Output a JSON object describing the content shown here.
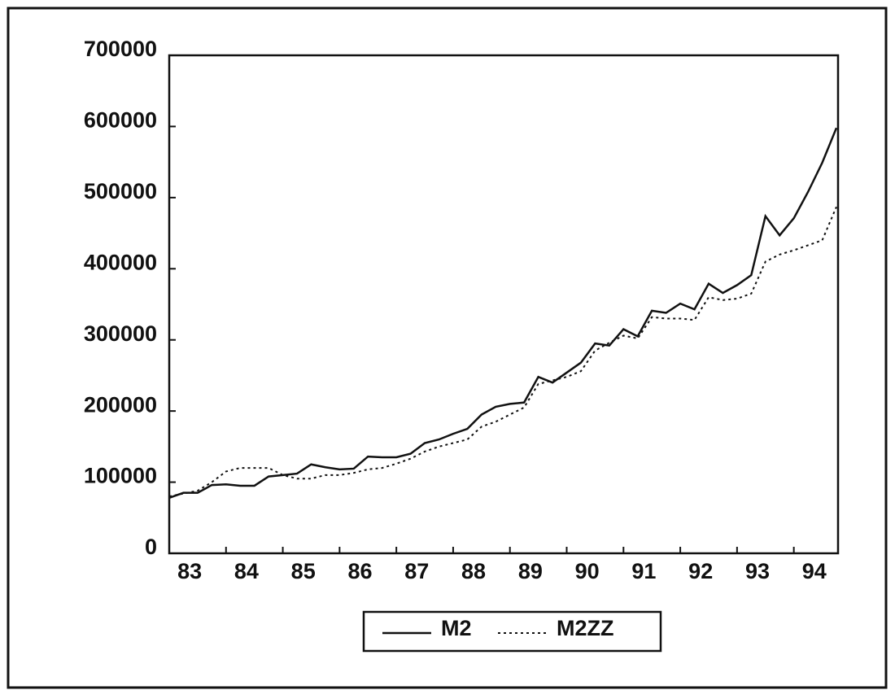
{
  "chart_data": {
    "type": "line",
    "x": [
      83,
      83.25,
      83.5,
      83.75,
      84,
      84.25,
      84.5,
      84.75,
      85,
      85.25,
      85.5,
      85.75,
      86,
      86.25,
      86.5,
      86.75,
      87,
      87.25,
      87.5,
      87.75,
      88,
      88.25,
      88.5,
      88.75,
      89,
      89.25,
      89.5,
      89.75,
      90,
      90.25,
      90.5,
      90.75,
      91,
      91.25,
      91.5,
      91.75,
      92,
      92.25,
      92.5,
      92.75,
      93,
      93.25,
      93.5,
      93.75,
      94,
      94.25,
      94.5,
      94.75
    ],
    "series": [
      {
        "name": "M2",
        "color": "#111111",
        "dash": "solid",
        "values": [
          78000,
          85000,
          85000,
          96000,
          97000,
          95000,
          95000,
          108000,
          110000,
          112000,
          125000,
          121000,
          118000,
          119000,
          136000,
          135000,
          135000,
          140000,
          155000,
          160000,
          168000,
          175000,
          195000,
          206000,
          210000,
          212000,
          248000,
          240000,
          254000,
          268000,
          295000,
          292000,
          315000,
          305000,
          341000,
          338000,
          351000,
          343000,
          379000,
          366000,
          377000,
          391000,
          474000,
          447000,
          471000,
          508000,
          549000,
          598000
        ]
      },
      {
        "name": "M2ZZ",
        "color": "#111111",
        "dash": "dotted",
        "values": [
          80000,
          84000,
          88000,
          100000,
          115000,
          120000,
          120000,
          120000,
          110000,
          105000,
          105000,
          110000,
          110000,
          113000,
          118000,
          120000,
          126000,
          133000,
          143000,
          150000,
          155000,
          160000,
          178000,
          185000,
          195000,
          205000,
          238000,
          243000,
          248000,
          256000,
          285000,
          296000,
          306000,
          302000,
          332000,
          330000,
          330000,
          328000,
          360000,
          356000,
          358000,
          365000,
          410000,
          420000,
          426000,
          433000,
          440000,
          487000
        ]
      }
    ],
    "xlim": [
      83,
      94.75
    ],
    "xticks": [
      83,
      84,
      85,
      86,
      87,
      88,
      89,
      90,
      91,
      92,
      93,
      94
    ],
    "ylim": [
      0,
      700000
    ],
    "yticks": [
      0,
      100000,
      200000,
      300000,
      400000,
      500000,
      600000,
      700000
    ]
  }
}
